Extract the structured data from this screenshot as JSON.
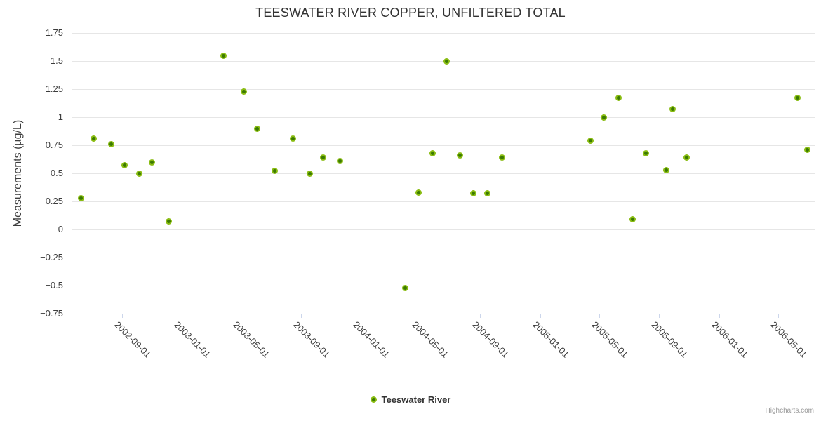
{
  "title": "TEESWATER RIVER COPPER, UNFILTERED TOTAL",
  "y_axis": {
    "title": "Measurements (µg/L)",
    "ticks": [
      1.75,
      1.5,
      1.25,
      1,
      0.75,
      0.5,
      0.25,
      0,
      -0.25,
      -0.5,
      -0.75
    ],
    "tick_labels": [
      "1.75",
      "1.5",
      "1.25",
      "1",
      "0.75",
      "0.5",
      "0.25",
      "0",
      "−0.25",
      "−0.5",
      "−0.75"
    ]
  },
  "x_axis": {
    "tick_labels": [
      "2002-09-01",
      "2003-01-01",
      "2003-05-01",
      "2003-09-01",
      "2004-01-01",
      "2004-05-01",
      "2004-09-01",
      "2005-01-01",
      "2005-05-01",
      "2005-09-01",
      "2006-01-01",
      "2006-05-01"
    ]
  },
  "legend": {
    "label": "Teeswater River"
  },
  "credits": {
    "label": "Highcharts.com"
  },
  "colors": {
    "marker_core": "#3b7a02",
    "marker_ring": "#89bc12",
    "gridline": "#e6e6e6",
    "axis_line": "#ccd6eb",
    "title": "#333333",
    "axis_label": "#3c3c3c",
    "credits": "#999999"
  },
  "chart_data": {
    "type": "scatter",
    "title": "TEESWATER RIVER COPPER, UNFILTERED TOTAL",
    "xlabel": "",
    "ylabel": "Measurements (µg/L)",
    "ylim": [
      -0.75,
      1.75
    ],
    "xlim": [
      "2002-05-23",
      "2006-07-15"
    ],
    "x_ticks": [
      "2002-09-01",
      "2003-01-01",
      "2003-05-01",
      "2003-09-01",
      "2004-01-01",
      "2004-05-01",
      "2004-09-01",
      "2005-01-01",
      "2005-05-01",
      "2005-09-01",
      "2006-01-01",
      "2006-05-01"
    ],
    "grid": "horizontal",
    "legend_position": "bottom-center",
    "series": [
      {
        "name": "Teeswater River",
        "data": [
          [
            "2002-06-10",
            0.28
          ],
          [
            "2002-07-05",
            0.81
          ],
          [
            "2002-08-11",
            0.76
          ],
          [
            "2002-09-07",
            0.57
          ],
          [
            "2002-10-06",
            0.5
          ],
          [
            "2002-11-02",
            0.6
          ],
          [
            "2002-12-06",
            0.07
          ],
          [
            "2003-03-27",
            1.55
          ],
          [
            "2003-05-08",
            1.23
          ],
          [
            "2003-06-04",
            0.9
          ],
          [
            "2003-07-10",
            0.52
          ],
          [
            "2003-08-16",
            0.81
          ],
          [
            "2003-09-19",
            0.5
          ],
          [
            "2003-10-17",
            0.64
          ],
          [
            "2003-11-20",
            0.61
          ],
          [
            "2004-04-01",
            -0.52
          ],
          [
            "2004-04-28",
            0.33
          ],
          [
            "2004-05-27",
            0.68
          ],
          [
            "2004-06-25",
            1.5
          ],
          [
            "2004-07-22",
            0.66
          ],
          [
            "2004-08-18",
            0.32
          ],
          [
            "2004-09-16",
            0.32
          ],
          [
            "2004-10-15",
            0.64
          ],
          [
            "2005-04-14",
            0.79
          ],
          [
            "2005-05-11",
            1.0
          ],
          [
            "2005-06-10",
            1.17
          ],
          [
            "2005-07-09",
            0.09
          ],
          [
            "2005-08-05",
            0.68
          ],
          [
            "2005-09-15",
            0.53
          ],
          [
            "2005-09-28",
            1.07
          ],
          [
            "2005-10-27",
            0.64
          ],
          [
            "2006-06-10",
            1.17
          ],
          [
            "2006-06-30",
            0.71
          ]
        ]
      }
    ]
  }
}
